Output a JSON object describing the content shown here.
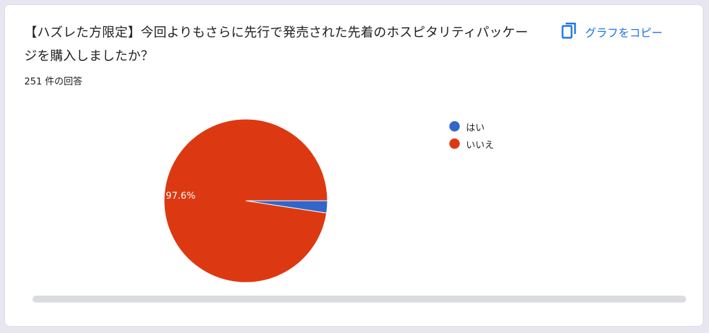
{
  "question": {
    "title": "【ハズレた方限定】今回よりもさらに先行で発売された先着のホスピタリティパッケージを購入しましたか？",
    "response_count": "251 件の回答"
  },
  "toolbar": {
    "copy_label": "グラフをコピー",
    "copy_icon": "copy-icon"
  },
  "colors": {
    "accent": "#1a73e8",
    "yes": "#3366cc",
    "no": "#dc3912"
  },
  "chart_data": {
    "type": "pie",
    "title": "",
    "slices": [
      {
        "label": "はい",
        "value": 2.4,
        "color": "#3366cc"
      },
      {
        "label": "いいえ",
        "value": 97.6,
        "color": "#dc3912"
      }
    ],
    "data_labels": [
      "",
      "97.6%"
    ],
    "legend_position": "right",
    "legend": [
      "はい",
      "いいえ"
    ]
  }
}
